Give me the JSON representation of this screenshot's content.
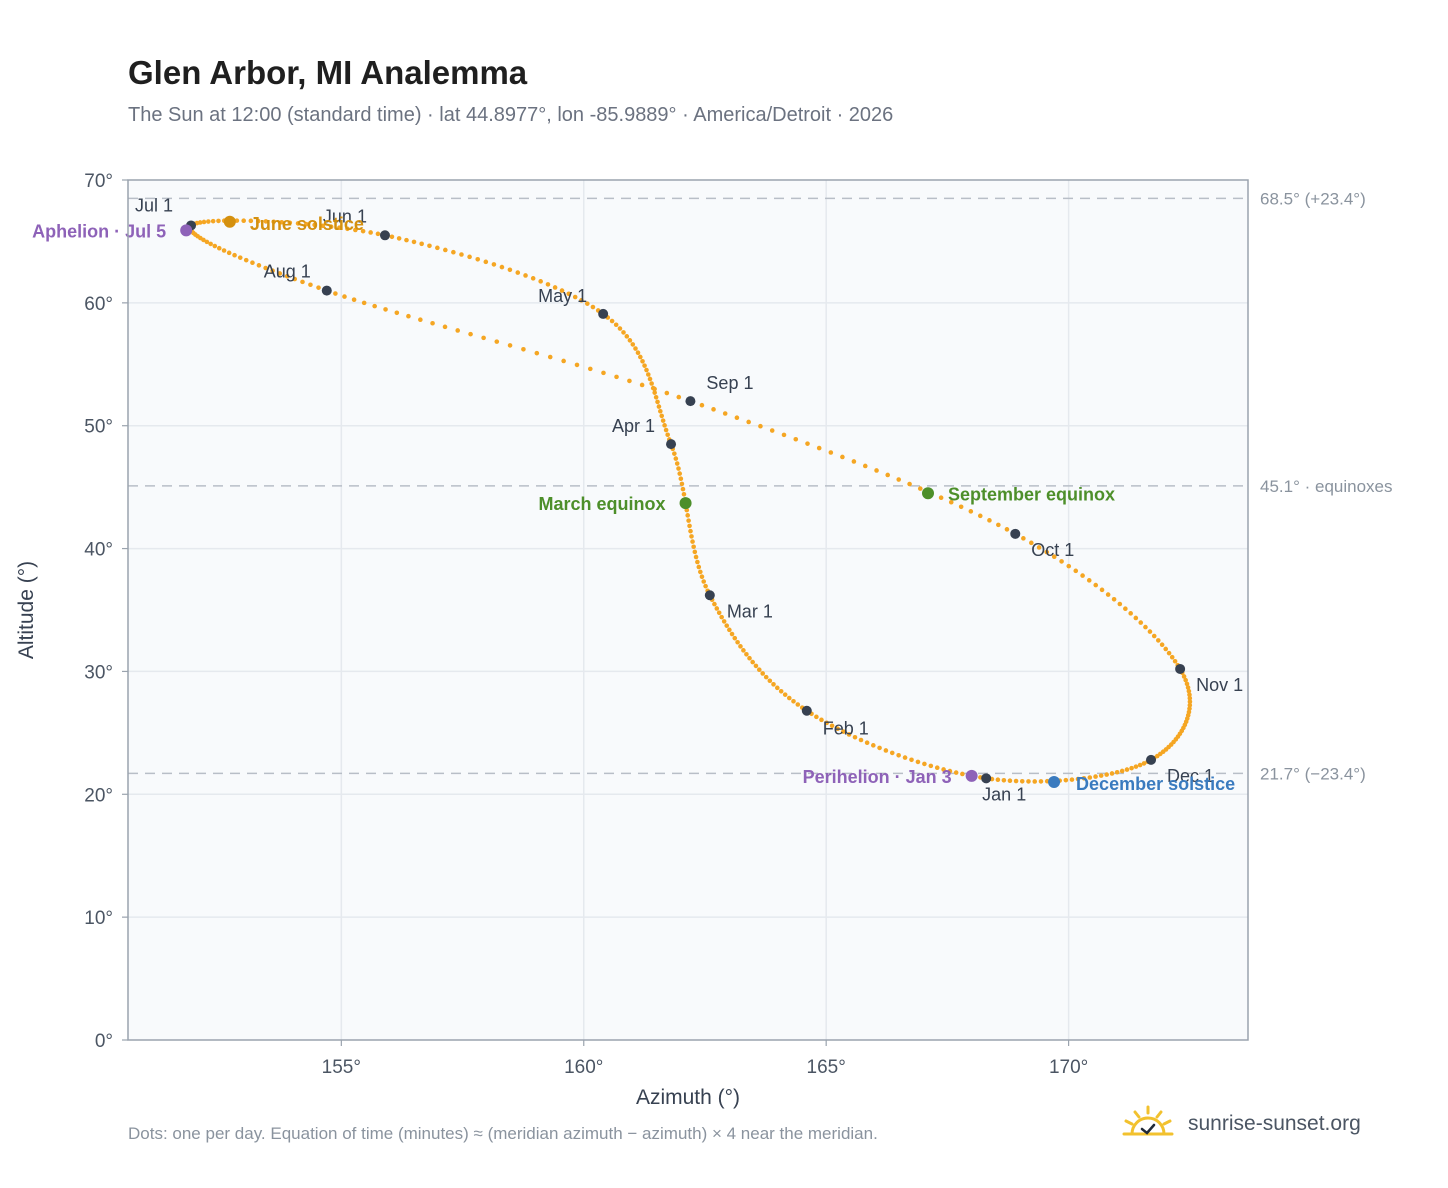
{
  "title": "Glen Arbor, MI Analemma",
  "subtitle": "The Sun at 12:00 (standard time) · lat 44.8977°, lon -85.9889° · America/Detroit · 2026",
  "footnote": "Dots: one per day. Equation of time (minutes) ≈ (meridian azimuth − azimuth) × 4 near the meridian.",
  "brand": {
    "name": "sunrise-sunset.org",
    "logo_icon": "sun-checkmark-icon"
  },
  "colors": {
    "curve": "#f5a623",
    "month_marker": "#374151",
    "solstice_june": "#d4900f",
    "solstice_december": "#3a7bbf",
    "equinox": "#4d8f2a",
    "apsis": "#8e62b8",
    "reference_line": "#b8bec7",
    "plot_background": "#f8fafc",
    "grid": "#e5e9ee",
    "axis_border": "#9aa3ae"
  },
  "chart_data": {
    "type": "scatter",
    "xlabel": "Azimuth (°)",
    "ylabel": "Altitude (°)",
    "xlim": [
      150.6,
      173.7
    ],
    "ylim": [
      0,
      70
    ],
    "xticks": [
      155,
      160,
      165,
      170
    ],
    "yticks": [
      0,
      10,
      20,
      30,
      40,
      50,
      60,
      70
    ],
    "x_tick_labels": [
      "155°",
      "160°",
      "165°",
      "170°"
    ],
    "y_tick_labels": [
      "0°",
      "10°",
      "20°",
      "30°",
      "40°",
      "50°",
      "60°",
      "70°"
    ],
    "grid": true,
    "series": [],
    "month_markers": [
      {
        "label": "Jan 1",
        "azimuth": 168.3,
        "altitude": 21.3
      },
      {
        "label": "Feb 1",
        "azimuth": 164.6,
        "altitude": 26.8
      },
      {
        "label": "Mar 1",
        "azimuth": 162.6,
        "altitude": 36.2
      },
      {
        "label": "Apr 1",
        "azimuth": 161.8,
        "altitude": 48.5
      },
      {
        "label": "May 1",
        "azimuth": 160.4,
        "altitude": 59.1
      },
      {
        "label": "Jun 1",
        "azimuth": 155.9,
        "altitude": 65.5
      },
      {
        "label": "Jul 1",
        "azimuth": 151.9,
        "altitude": 66.3
      },
      {
        "label": "Aug 1",
        "azimuth": 154.7,
        "altitude": 61.0
      },
      {
        "label": "Sep 1",
        "azimuth": 162.2,
        "altitude": 52.0
      },
      {
        "label": "Oct 1",
        "azimuth": 168.9,
        "altitude": 41.2
      },
      {
        "label": "Nov 1",
        "azimuth": 172.3,
        "altitude": 30.2
      },
      {
        "label": "Dec 1",
        "azimuth": 171.7,
        "altitude": 22.8
      }
    ],
    "events": [
      {
        "label": "June solstice",
        "azimuth": 152.7,
        "altitude": 66.6,
        "kind": "solstice_june"
      },
      {
        "label": "December solstice",
        "azimuth": 169.7,
        "altitude": 21.0,
        "kind": "solstice_december"
      },
      {
        "label": "March equinox",
        "azimuth": 162.1,
        "altitude": 43.7,
        "kind": "equinox"
      },
      {
        "label": "September equinox",
        "azimuth": 167.1,
        "altitude": 44.5,
        "kind": "equinox"
      },
      {
        "label": "Aphelion · Jul 5",
        "azimuth": 151.8,
        "altitude": 65.9,
        "kind": "apsis"
      },
      {
        "label": "Perihelion · Jan 3",
        "azimuth": 168.0,
        "altitude": 21.5,
        "kind": "apsis"
      }
    ],
    "reference_lines": [
      {
        "label": "68.5° (+23.4°)",
        "altitude": 68.5
      },
      {
        "label": "45.1° · equinoxes",
        "altitude": 45.1
      },
      {
        "label": "21.7° (−23.4°)",
        "altitude": 21.7
      }
    ]
  }
}
